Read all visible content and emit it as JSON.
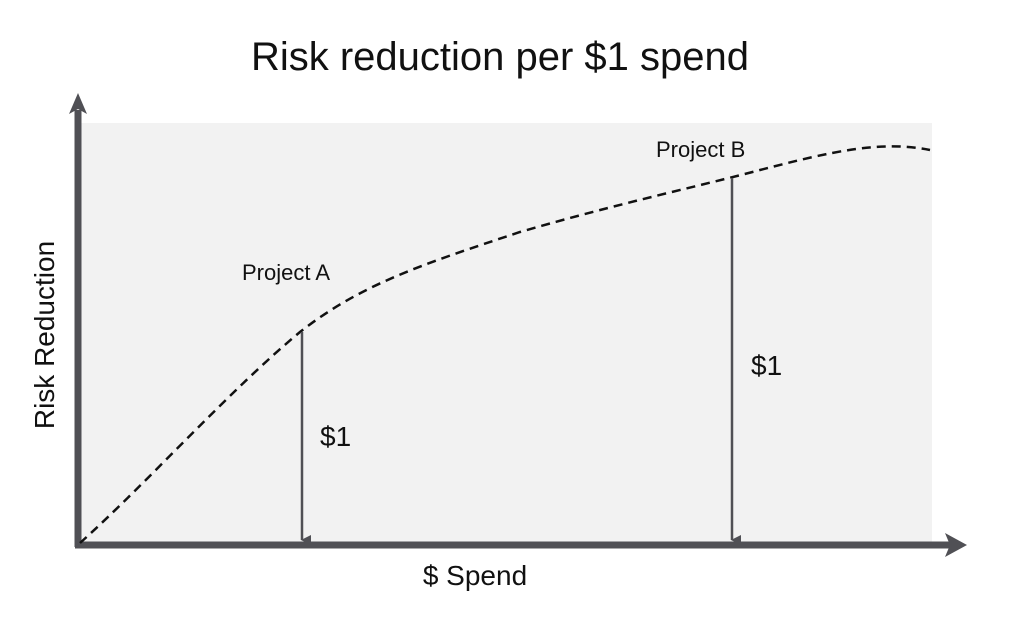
{
  "title": "Risk reduction per $1 spend",
  "y_axis_label": "Risk Reduction",
  "x_axis_label": "$ Spend",
  "annotations": {
    "project_a": {
      "label": "Project A",
      "spend_label": "$1"
    },
    "project_b": {
      "label": "Project B",
      "spend_label": "$1"
    }
  },
  "colors": {
    "plot_background": "#f2f2f2",
    "axis": "#505055",
    "curve": "#111111",
    "text": "#111111"
  }
}
